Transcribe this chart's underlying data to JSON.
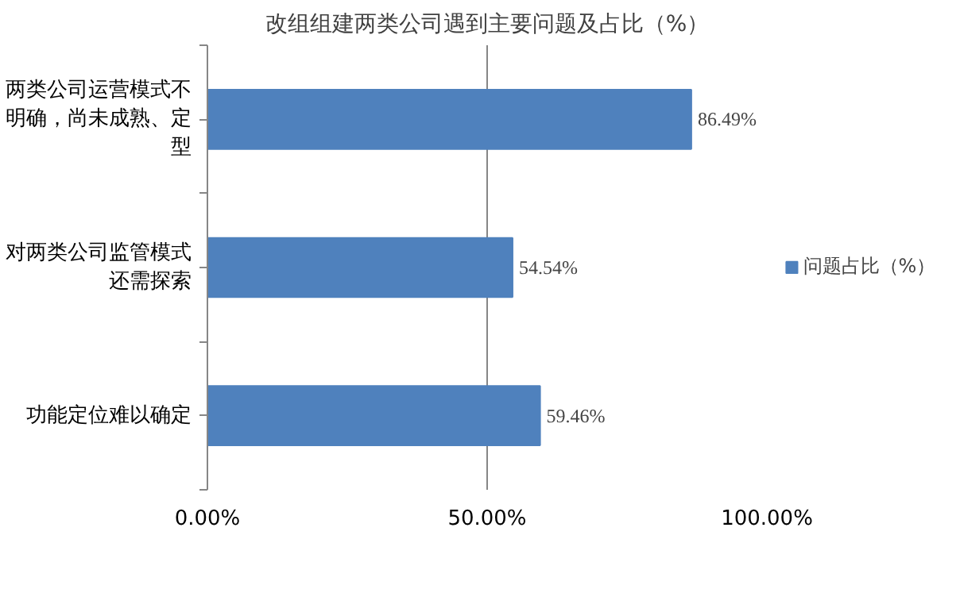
{
  "chart_data": {
    "type": "bar",
    "orientation": "horizontal",
    "title": "改组组建两类公司遇到主要问题及占比（%）",
    "categories": [
      "两类公司运营模式不明确，尚未成熟、定型",
      "对两类公司监管模式还需探索",
      "功能定位难以确定"
    ],
    "series": [
      {
        "name": "问题占比（%）",
        "color": "#4f81bd",
        "values": [
          86.49,
          54.54,
          59.46
        ],
        "value_labels": [
          "86.49%",
          "54.54%",
          "59.46%"
        ]
      }
    ],
    "xlim": [
      0,
      100
    ],
    "xticks": [
      {
        "value": 0,
        "label": "0.00%"
      },
      {
        "value": 50,
        "label": "50.00%"
      },
      {
        "value": 100,
        "label": "100.00%"
      }
    ],
    "grid": "x",
    "legend": "right"
  }
}
